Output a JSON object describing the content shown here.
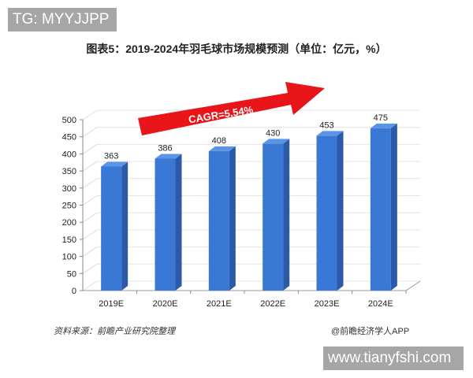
{
  "watermark_top": "TG: MYYJJPP",
  "watermark_bottom": "www.tianyfshi.com",
  "source": "资料来源：前瞻产业研究院整理",
  "credit": "@前瞻经济学人APP",
  "chart_data": {
    "type": "bar",
    "title": "图表5：2019-2024年羽毛球市场规模预测（单位：亿元，%）",
    "categories": [
      "2019E",
      "2020E",
      "2021E",
      "2022E",
      "2023E",
      "2024E"
    ],
    "values": [
      363,
      386,
      408,
      430,
      453,
      475
    ],
    "ylim": [
      0,
      500
    ],
    "yticks": [
      0,
      50,
      100,
      150,
      200,
      250,
      300,
      350,
      400,
      450,
      500
    ],
    "grid": true,
    "style": "3d-column",
    "annotation": "CAGR=5.54%",
    "colors": {
      "bar_front": "#3a78d6",
      "bar_side": "#2a5aa8",
      "bar_top": "#5b93e6",
      "arrow": "#e8151b"
    }
  }
}
